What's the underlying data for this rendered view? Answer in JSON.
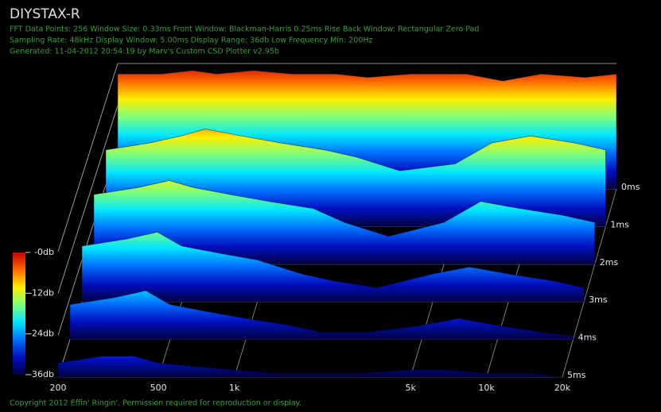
{
  "chart_data": {
    "type": "waterfall",
    "title": "DIYSTAX-R",
    "info_lines": [
      "FFT Data Points: 256   Window Size: 0.33ms    Front Window: Blackman-Harris 0.25ms Rise    Back Window: Rectangular Zero Pad",
      "Sampling Rate: 48kHz   Display Window: 5.00ms    Display Range: 36db   Low Frequency Min: 200Hz",
      "Generated: 11-04-2012 20:54:19 by Marv's Custom CSD Plotter v2.95b"
    ],
    "footer": "Copyright 2012 Effin' Ringin'. Permission required for reproduction or display.",
    "x": [
      200,
      300,
      400,
      500,
      700,
      1000,
      1500,
      2000,
      3000,
      5000,
      7000,
      10000,
      15000,
      20000
    ],
    "slices": [
      {
        "t": 0,
        "values": [
          -3,
          -3,
          -2,
          -3,
          -2,
          -3,
          -3,
          -4,
          -3,
          -3,
          -5,
          -3,
          -4,
          -3
        ]
      },
      {
        "t": 1,
        "values": [
          -14,
          -12,
          -10,
          -8,
          -10,
          -12,
          -14,
          -16,
          -20,
          -18,
          -12,
          -10,
          -12,
          -14
        ]
      },
      {
        "t": 2,
        "values": [
          -16,
          -14,
          -12,
          -14,
          -16,
          -18,
          -20,
          -24,
          -28,
          -24,
          -18,
          -20,
          -22,
          -24
        ]
      },
      {
        "t": 3,
        "values": [
          -20,
          -18,
          -16,
          -20,
          -22,
          -24,
          -28,
          -30,
          -32,
          -28,
          -26,
          -28,
          -30,
          -32
        ]
      },
      {
        "t": 4,
        "values": [
          -26,
          -24,
          -22,
          -26,
          -28,
          -30,
          -32,
          -34,
          -34,
          -32,
          -30,
          -32,
          -34,
          -35
        ]
      },
      {
        "t": 5,
        "values": [
          -32,
          -30,
          -30,
          -32,
          -33,
          -34,
          -35,
          -35,
          -35,
          -34,
          -34,
          -35,
          -35,
          -36
        ]
      }
    ],
    "xlim": [
      200,
      20000
    ],
    "xticks": [
      200,
      500,
      {
        "value": 1000,
        "label": "1k"
      },
      {
        "value": 5000,
        "label": "5k"
      },
      {
        "value": 10000,
        "label": "10k"
      },
      {
        "value": 20000,
        "label": "20k"
      }
    ],
    "x_log": true,
    "ylim": [
      0,
      5
    ],
    "yticks": [
      {
        "value": 0,
        "label": "0ms"
      },
      {
        "value": 1,
        "label": "1ms"
      },
      {
        "value": 2,
        "label": "2ms"
      },
      {
        "value": 3,
        "label": "3ms"
      },
      {
        "value": 4,
        "label": "4ms"
      },
      {
        "value": 5,
        "label": "5ms"
      }
    ],
    "zlim": [
      -36,
      0
    ],
    "zticks": [
      {
        "value": 0,
        "label": "-0db"
      },
      {
        "value": -12,
        "label": "-12db"
      },
      {
        "value": -24,
        "label": "-24db"
      },
      {
        "value": -36,
        "label": "-36db"
      }
    ],
    "colormap": [
      "#c80000",
      "#ff6a00",
      "#ffee00",
      "#7cff7c",
      "#00e5ff",
      "#0070ff",
      "#0010c0",
      "#000040"
    ],
    "grid": true
  }
}
